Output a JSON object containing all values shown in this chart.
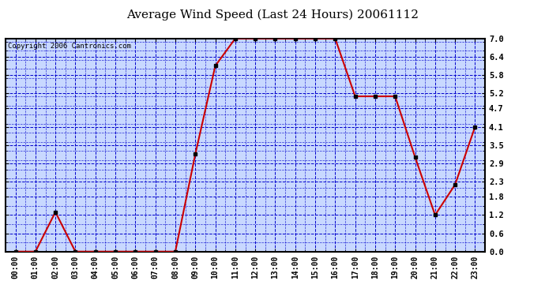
{
  "title": "Average Wind Speed (Last 24 Hours) 20061112",
  "copyright": "Copyright 2006 Cantronics.com",
  "x_labels": [
    "00:00",
    "01:00",
    "02:00",
    "03:00",
    "04:00",
    "05:00",
    "06:00",
    "07:00",
    "08:00",
    "09:00",
    "10:00",
    "11:00",
    "12:00",
    "13:00",
    "14:00",
    "15:00",
    "16:00",
    "17:00",
    "18:00",
    "19:00",
    "20:00",
    "21:00",
    "22:00",
    "23:00"
  ],
  "y_values": [
    0.0,
    0.0,
    1.3,
    0.0,
    0.0,
    0.0,
    0.0,
    0.0,
    0.0,
    3.2,
    6.1,
    7.0,
    7.0,
    7.0,
    7.0,
    7.0,
    7.0,
    5.1,
    5.1,
    5.1,
    3.1,
    1.2,
    2.2,
    4.1
  ],
  "y_ticks": [
    0.0,
    0.6,
    1.2,
    1.8,
    2.3,
    2.9,
    3.5,
    4.1,
    4.7,
    5.2,
    5.8,
    6.4,
    7.0
  ],
  "ylim": [
    0.0,
    7.0
  ],
  "line_color": "#cc0000",
  "marker_color": "#000000",
  "bg_color": "#c8d8ff",
  "grid_color": "#0000cc",
  "border_color": "#000000",
  "fig_bg": "#ffffff",
  "title_fontsize": 11,
  "copyright_fontsize": 6.5,
  "tick_label_fontsize": 7
}
